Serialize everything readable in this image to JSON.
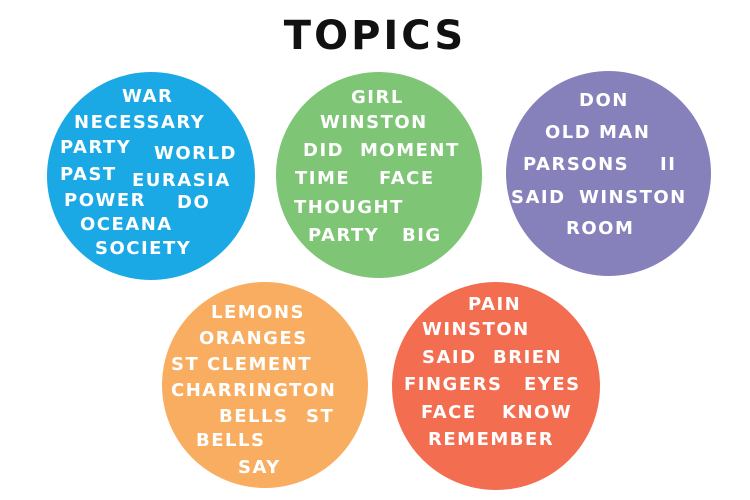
{
  "title": "TOPICS",
  "colors": {
    "blue": "#1ba9e6",
    "green": "#7ec575",
    "purple": "#8681bb",
    "orange": "#f9ad60",
    "red": "#f36e50"
  },
  "topics": [
    {
      "color": "blue",
      "words": [
        "WAR",
        "NECESSARY",
        "PARTY",
        "WORLD",
        "PAST",
        "EURASIA",
        "POWER",
        "DO",
        "OCEANA",
        "SOCIETY"
      ]
    },
    {
      "color": "green",
      "words": [
        "GIRL",
        "WINSTON",
        "DID",
        "MOMENT",
        "TIME",
        "FACE",
        "THOUGHT",
        "PARTY",
        "BIG"
      ]
    },
    {
      "color": "purple",
      "words": [
        "DON",
        "OLD MAN",
        "PARSONS",
        "II",
        "SAID",
        "WINSTON",
        "ROOM"
      ]
    },
    {
      "color": "orange",
      "words": [
        "LEMONS",
        "ORANGES",
        "ST CLEMENT",
        "CHARRINGTON",
        "BELLS",
        "ST",
        "BELLS",
        "SAY"
      ]
    },
    {
      "color": "red",
      "words": [
        "PAIN",
        "WINSTON",
        "SAID",
        "BRIEN",
        "FINGERS",
        "EYES",
        "FACE",
        "KNOW",
        "REMEMBER"
      ]
    }
  ]
}
